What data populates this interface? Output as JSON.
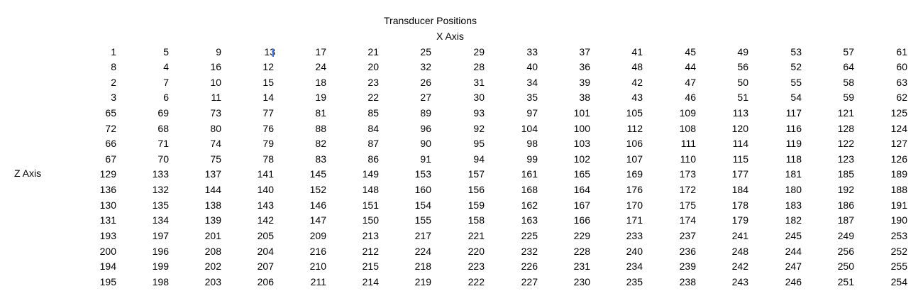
{
  "title": "Transducer Positions",
  "x_axis_label": "X Axis",
  "z_axis_label": "Z Axis",
  "rows": [
    [
      1,
      5,
      9,
      13,
      17,
      21,
      25,
      29,
      33,
      37,
      41,
      45,
      49,
      53,
      57,
      61
    ],
    [
      8,
      4,
      16,
      12,
      24,
      20,
      32,
      28,
      40,
      36,
      48,
      44,
      56,
      52,
      64,
      60
    ],
    [
      2,
      7,
      10,
      15,
      18,
      23,
      26,
      31,
      34,
      39,
      42,
      47,
      50,
      55,
      58,
      63
    ],
    [
      3,
      6,
      11,
      14,
      19,
      22,
      27,
      30,
      35,
      38,
      43,
      46,
      51,
      54,
      59,
      62
    ],
    [
      65,
      69,
      73,
      77,
      81,
      85,
      89,
      93,
      97,
      101,
      105,
      109,
      113,
      117,
      121,
      125
    ],
    [
      72,
      68,
      80,
      76,
      88,
      84,
      96,
      92,
      104,
      100,
      112,
      108,
      120,
      116,
      128,
      124
    ],
    [
      66,
      71,
      74,
      79,
      82,
      87,
      90,
      95,
      98,
      103,
      106,
      111,
      114,
      119,
      122,
      127
    ],
    [
      67,
      70,
      75,
      78,
      83,
      86,
      91,
      94,
      99,
      102,
      107,
      110,
      115,
      118,
      123,
      126
    ],
    [
      129,
      133,
      137,
      141,
      145,
      149,
      153,
      157,
      161,
      165,
      169,
      173,
      177,
      181,
      185,
      189
    ],
    [
      136,
      132,
      144,
      140,
      152,
      148,
      160,
      156,
      168,
      164,
      176,
      172,
      184,
      180,
      192,
      188
    ],
    [
      130,
      135,
      138,
      143,
      146,
      151,
      154,
      159,
      162,
      167,
      170,
      175,
      178,
      183,
      186,
      191
    ],
    [
      131,
      134,
      139,
      142,
      147,
      150,
      155,
      158,
      163,
      166,
      171,
      174,
      179,
      182,
      187,
      190
    ],
    [
      193,
      197,
      201,
      205,
      209,
      213,
      217,
      221,
      225,
      229,
      233,
      237,
      241,
      245,
      249,
      253
    ],
    [
      200,
      196,
      208,
      204,
      216,
      212,
      224,
      220,
      232,
      228,
      240,
      236,
      248,
      244,
      256,
      252
    ],
    [
      194,
      199,
      202,
      207,
      210,
      215,
      218,
      223,
      226,
      231,
      234,
      239,
      242,
      247,
      250,
      255
    ],
    [
      195,
      198,
      203,
      206,
      211,
      214,
      219,
      222,
      227,
      230,
      235,
      238,
      243,
      246,
      251,
      254
    ]
  ]
}
